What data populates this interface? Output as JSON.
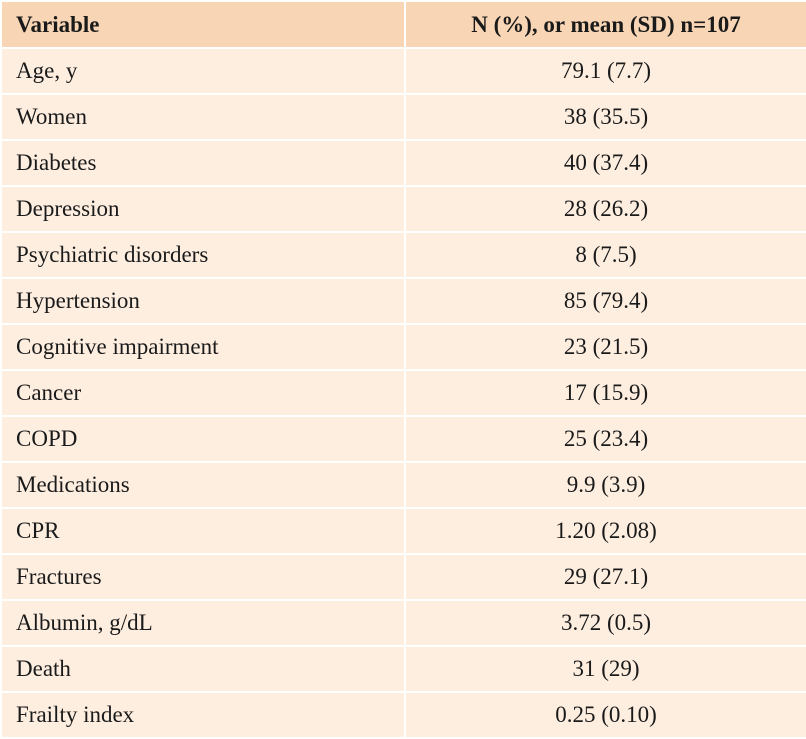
{
  "table": {
    "headers": [
      "Variable",
      "N (%), or mean (SD) n=107"
    ],
    "rows": [
      [
        "Age, y",
        "79.1 (7.7)"
      ],
      [
        "Women",
        "38 (35.5)"
      ],
      [
        "Diabetes",
        "40 (37.4)"
      ],
      [
        "Depression",
        "28 (26.2)"
      ],
      [
        "Psychiatric disorders",
        "8 (7.5)"
      ],
      [
        "Hypertension",
        "85 (79.4)"
      ],
      [
        "Cognitive impairment",
        "23 (21.5)"
      ],
      [
        "Cancer",
        "17 (15.9)"
      ],
      [
        "COPD",
        "25 (23.4)"
      ],
      [
        "Medications",
        "9.9 (3.9)"
      ],
      [
        "CPR",
        "1.20 (2.08)"
      ],
      [
        "Fractures",
        "29 (27.1)"
      ],
      [
        "Albumin, g/dL",
        "3.72 (0.5)"
      ],
      [
        "Death",
        "31 (29)"
      ],
      [
        "Frailty index",
        "0.25 (0.10)"
      ]
    ]
  }
}
